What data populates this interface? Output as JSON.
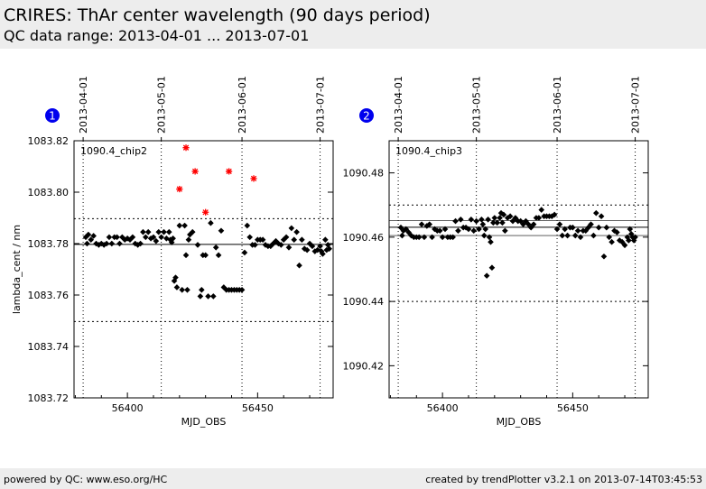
{
  "header": {
    "title": "CRIRES: ThAr center wavelength (90 days period)",
    "subtitle": "QC data range: 2013-04-01 ... 2013-07-01"
  },
  "footer": {
    "left": "powered by QC: www.eso.org/HC",
    "right": "created by trendPlotter v3.2.1 on 2013-07-14T03:45:53"
  },
  "colors": {
    "marker": "#000000",
    "outlier": "#ff0000",
    "badge": "#0000ee"
  },
  "chart_data": [
    {
      "type": "scatter",
      "badge": "1",
      "label": "1090.4_chip2",
      "xlabel": "MJD_OBS",
      "ylabel": "lambda_cent / nm",
      "xlim": [
        56379.5,
        56479
      ],
      "ylim": [
        1083.72,
        1083.82
      ],
      "xticks": [
        56400,
        56450
      ],
      "yticks": [
        1083.72,
        1083.74,
        1083.76,
        1083.78,
        1083.8,
        1083.82
      ],
      "ytick_labels": [
        "1083.72",
        "1083.74",
        "1083.76",
        "1083.78",
        "1083.80",
        "1083.82"
      ],
      "date_ticks": [
        {
          "label": "2013-04-01",
          "mjd": 56383
        },
        {
          "label": "2013-05-01",
          "mjd": 56413
        },
        {
          "label": "2013-06-01",
          "mjd": 56444
        },
        {
          "label": "2013-07-01",
          "mjd": 56474
        }
      ],
      "reference_line": 1083.7797,
      "threshold_lines": [
        1083.7497,
        1083.7897
      ],
      "points": [
        [
          56384,
          1083.7825
        ],
        [
          56384.5,
          1083.78
        ],
        [
          56385,
          1083.7835
        ],
        [
          56386,
          1083.7815
        ],
        [
          56387,
          1083.783
        ],
        [
          56388,
          1083.78
        ],
        [
          56389,
          1083.7795
        ],
        [
          56390,
          1083.78
        ],
        [
          56391,
          1083.7795
        ],
        [
          56392,
          1083.78
        ],
        [
          56393,
          1083.7825
        ],
        [
          56394,
          1083.78
        ],
        [
          56395,
          1083.7825
        ],
        [
          56396,
          1083.7825
        ],
        [
          56397,
          1083.78
        ],
        [
          56398,
          1083.7825
        ],
        [
          56399,
          1083.7815
        ],
        [
          56400,
          1083.782
        ],
        [
          56401,
          1083.7815
        ],
        [
          56402,
          1083.7825
        ],
        [
          56403,
          1083.78
        ],
        [
          56404,
          1083.7795
        ],
        [
          56405,
          1083.78
        ],
        [
          56406,
          1083.7845
        ],
        [
          56407,
          1083.7825
        ],
        [
          56408,
          1083.7845
        ],
        [
          56409,
          1083.782
        ],
        [
          56410,
          1083.7825
        ],
        [
          56411,
          1083.781
        ],
        [
          56412,
          1083.7845
        ],
        [
          56413,
          1083.7825
        ],
        [
          56414,
          1083.7845
        ],
        [
          56415,
          1083.782
        ],
        [
          56416,
          1083.7845
        ],
        [
          56416.5,
          1083.7815
        ],
        [
          56417,
          1083.7805
        ],
        [
          56417.5,
          1083.782
        ],
        [
          56418,
          1083.7655
        ],
        [
          56418.5,
          1083.7668
        ],
        [
          56419,
          1083.763
        ],
        [
          56420,
          1083.787
        ],
        [
          56421,
          1083.762
        ],
        [
          56422,
          1083.787
        ],
        [
          56422.5,
          1083.7755
        ],
        [
          56423,
          1083.762
        ],
        [
          56423.5,
          1083.7815
        ],
        [
          56424,
          1083.7835
        ],
        [
          56425,
          1083.7845
        ],
        [
          56427,
          1083.7795
        ],
        [
          56428,
          1083.7595
        ],
        [
          56428.5,
          1083.762
        ],
        [
          56429,
          1083.7755
        ],
        [
          56430,
          1083.7755
        ],
        [
          56431,
          1083.7595
        ],
        [
          56432,
          1083.788
        ],
        [
          56433,
          1083.7595
        ],
        [
          56434,
          1083.7785
        ],
        [
          56435,
          1083.7755
        ],
        [
          56436,
          1083.785
        ],
        [
          56437,
          1083.763
        ],
        [
          56438,
          1083.762
        ],
        [
          56439,
          1083.762
        ],
        [
          56440,
          1083.762
        ],
        [
          56441,
          1083.762
        ],
        [
          56442,
          1083.762
        ],
        [
          56443,
          1083.762
        ],
        [
          56444,
          1083.762
        ],
        [
          56445,
          1083.7765
        ],
        [
          56446,
          1083.787
        ],
        [
          56447,
          1083.7825
        ],
        [
          56448,
          1083.7795
        ],
        [
          56449,
          1083.7795
        ],
        [
          56450,
          1083.7815
        ],
        [
          56451,
          1083.7815
        ],
        [
          56452,
          1083.7815
        ],
        [
          56453,
          1083.7795
        ],
        [
          56454,
          1083.779
        ],
        [
          56455,
          1083.779
        ],
        [
          56456,
          1083.78
        ],
        [
          56457,
          1083.781
        ],
        [
          56458,
          1083.78
        ],
        [
          56459,
          1083.7795
        ],
        [
          56460,
          1083.7815
        ],
        [
          56461,
          1083.7825
        ],
        [
          56462,
          1083.7785
        ],
        [
          56463,
          1083.786
        ],
        [
          56464,
          1083.7815
        ],
        [
          56465,
          1083.7845
        ],
        [
          56466,
          1083.7715
        ],
        [
          56467,
          1083.7815
        ],
        [
          56468,
          1083.778
        ],
        [
          56469,
          1083.7775
        ],
        [
          56470,
          1083.78
        ],
        [
          56471,
          1083.779
        ],
        [
          56472,
          1083.777
        ],
        [
          56473,
          1083.7775
        ],
        [
          56474,
          1083.779
        ],
        [
          56474.5,
          1083.777
        ],
        [
          56475,
          1083.776
        ],
        [
          56476,
          1083.7815
        ],
        [
          56476.5,
          1083.7775
        ],
        [
          56477,
          1083.7795
        ],
        [
          56477.5,
          1083.778
        ]
      ],
      "outliers": [
        [
          56420,
          1083.8012
        ],
        [
          56422.5,
          1083.8173
        ],
        [
          56426,
          1083.8081
        ],
        [
          56430,
          1083.7922
        ],
        [
          56439,
          1083.8081
        ],
        [
          56448.5,
          1083.8053
        ]
      ]
    },
    {
      "type": "scatter",
      "badge": "2",
      "label": "1090.4_chip3",
      "xlabel": "MJD_OBS",
      "ylabel": "",
      "xlim": [
        56379.5,
        56479
      ],
      "ylim": [
        1090.41,
        1090.49
      ],
      "xticks": [
        56400,
        56450
      ],
      "yticks": [
        1090.42,
        1090.44,
        1090.46,
        1090.48
      ],
      "ytick_labels": [
        "1090.42",
        "1090.44",
        "1090.46",
        "1090.48"
      ],
      "date_ticks": [
        {
          "label": "2013-04-01",
          "mjd": 56383
        },
        {
          "label": "2013-05-01",
          "mjd": 56413
        },
        {
          "label": "2013-06-01",
          "mjd": 56444
        },
        {
          "label": "2013-07-01",
          "mjd": 56474
        }
      ],
      "reference_line": 1090.4631,
      "threshold_lines": [
        1090.44,
        1090.47
      ],
      "band_lines": [
        1090.4652,
        1090.4605
      ],
      "points": [
        [
          56384,
          1090.463
        ],
        [
          56384.5,
          1090.4605
        ],
        [
          56385,
          1090.462
        ],
        [
          56386,
          1090.4625
        ],
        [
          56387,
          1090.4615
        ],
        [
          56388,
          1090.4605
        ],
        [
          56389,
          1090.46
        ],
        [
          56390,
          1090.46
        ],
        [
          56391,
          1090.46
        ],
        [
          56392,
          1090.464
        ],
        [
          56393,
          1090.46
        ],
        [
          56394,
          1090.4635
        ],
        [
          56395,
          1090.464
        ],
        [
          56396,
          1090.46
        ],
        [
          56397,
          1090.4625
        ],
        [
          56398,
          1090.462
        ],
        [
          56399,
          1090.462
        ],
        [
          56400,
          1090.46
        ],
        [
          56401,
          1090.4625
        ],
        [
          56402,
          1090.46
        ],
        [
          56403,
          1090.46
        ],
        [
          56404,
          1090.46
        ],
        [
          56405,
          1090.465
        ],
        [
          56406,
          1090.462
        ],
        [
          56407,
          1090.4655
        ],
        [
          56408,
          1090.463
        ],
        [
          56409,
          1090.463
        ],
        [
          56410,
          1090.4625
        ],
        [
          56411,
          1090.4655
        ],
        [
          56412,
          1090.462
        ],
        [
          56413,
          1090.465
        ],
        [
          56414,
          1090.4625
        ],
        [
          56415,
          1090.4655
        ],
        [
          56415.5,
          1090.464
        ],
        [
          56416,
          1090.4605
        ],
        [
          56416.5,
          1090.4625
        ],
        [
          56417,
          1090.448
        ],
        [
          56417.5,
          1090.4655
        ],
        [
          56418,
          1090.46
        ],
        [
          56418.5,
          1090.4585
        ],
        [
          56419,
          1090.4505
        ],
        [
          56419.5,
          1090.4645
        ],
        [
          56420,
          1090.466
        ],
        [
          56421,
          1090.4645
        ],
        [
          56422,
          1090.466
        ],
        [
          56422.5,
          1090.4675
        ],
        [
          56423,
          1090.4645
        ],
        [
          56423.5,
          1090.467
        ],
        [
          56424,
          1090.462
        ],
        [
          56425,
          1090.466
        ],
        [
          56426,
          1090.4665
        ],
        [
          56427,
          1090.465
        ],
        [
          56428,
          1090.466
        ],
        [
          56429,
          1090.465
        ],
        [
          56430,
          1090.465
        ],
        [
          56431,
          1090.464
        ],
        [
          56432,
          1090.465
        ],
        [
          56433,
          1090.464
        ],
        [
          56434,
          1090.463
        ],
        [
          56435,
          1090.464
        ],
        [
          56436,
          1090.466
        ],
        [
          56437,
          1090.466
        ],
        [
          56438,
          1090.4685
        ],
        [
          56439,
          1090.4665
        ],
        [
          56440,
          1090.4665
        ],
        [
          56441,
          1090.4665
        ],
        [
          56442,
          1090.4665
        ],
        [
          56443,
          1090.467
        ],
        [
          56444,
          1090.4625
        ],
        [
          56445,
          1090.464
        ],
        [
          56446,
          1090.4605
        ],
        [
          56447,
          1090.4625
        ],
        [
          56448,
          1090.4605
        ],
        [
          56449,
          1090.463
        ],
        [
          56450,
          1090.463
        ],
        [
          56451,
          1090.4605
        ],
        [
          56452,
          1090.462
        ],
        [
          56453,
          1090.46
        ],
        [
          56454,
          1090.462
        ],
        [
          56455,
          1090.462
        ],
        [
          56456,
          1090.463
        ],
        [
          56457,
          1090.464
        ],
        [
          56458,
          1090.4605
        ],
        [
          56459,
          1090.4675
        ],
        [
          56460,
          1090.463
        ],
        [
          56461,
          1090.4665
        ],
        [
          56462,
          1090.454
        ],
        [
          56463,
          1090.463
        ],
        [
          56464,
          1090.46
        ],
        [
          56465,
          1090.4585
        ],
        [
          56466,
          1090.462
        ],
        [
          56467,
          1090.4615
        ],
        [
          56468,
          1090.459
        ],
        [
          56469,
          1090.4585
        ],
        [
          56470,
          1090.4575
        ],
        [
          56471,
          1090.46
        ],
        [
          56471.5,
          1090.459
        ],
        [
          56472,
          1090.4625
        ],
        [
          56472.5,
          1090.461
        ],
        [
          56473,
          1090.46
        ],
        [
          56473.5,
          1090.459
        ],
        [
          56474,
          1090.46
        ]
      ]
    }
  ]
}
